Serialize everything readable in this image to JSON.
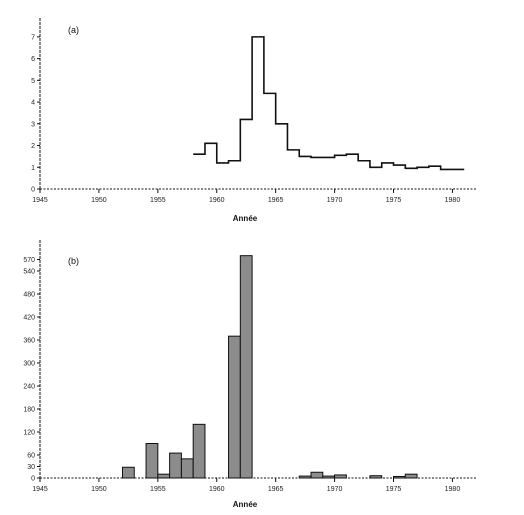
{
  "chart_data": [
    {
      "panel_label": "(a)",
      "type": "line",
      "step": true,
      "xlabel": "Année",
      "ylabel": "",
      "xlim": [
        1945,
        1982
      ],
      "ylim": [
        0,
        7.5
      ],
      "xticks": [
        1945,
        1950,
        1955,
        1960,
        1965,
        1970,
        1975,
        1980
      ],
      "yticks": [
        0,
        1,
        2,
        3,
        4,
        5,
        6,
        7
      ],
      "grid": false,
      "legend": "none",
      "x": [
        1958,
        1959,
        1960,
        1961,
        1962,
        1963,
        1964,
        1965,
        1966,
        1967,
        1968,
        1969,
        1970,
        1971,
        1972,
        1973,
        1974,
        1975,
        1976,
        1977,
        1978,
        1979,
        1980
      ],
      "y": [
        1.6,
        2.1,
        1.2,
        1.3,
        3.2,
        7.0,
        4.4,
        3.0,
        1.8,
        1.5,
        1.45,
        1.45,
        1.55,
        1.6,
        1.3,
        1.0,
        1.2,
        1.1,
        0.95,
        1.0,
        1.05,
        0.9,
        0.9
      ]
    },
    {
      "panel_label": "(b)",
      "type": "bar",
      "xlabel": "Année",
      "ylabel": "",
      "xlim": [
        1945,
        1982
      ],
      "ylim": [
        0,
        600
      ],
      "xticks": [
        1945,
        1950,
        1955,
        1960,
        1965,
        1970,
        1975,
        1980
      ],
      "yticks": [
        0,
        30,
        60,
        120,
        180,
        240,
        300,
        360,
        420,
        480,
        540,
        570
      ],
      "ytick_labels": [
        "0",
        "30",
        "60",
        "120",
        "180",
        "240",
        "300",
        "360",
        "420",
        "480",
        "540",
        "570"
      ],
      "grid": false,
      "legend": "none",
      "bar_fill": "#8c8c8c",
      "x": [
        1952,
        1954,
        1955,
        1956,
        1957,
        1958,
        1961,
        1962,
        1967,
        1968,
        1969,
        1970,
        1973,
        1975,
        1976
      ],
      "values": [
        28,
        90,
        10,
        65,
        50,
        140,
        370,
        580,
        5,
        15,
        5,
        8,
        6,
        4,
        10
      ]
    }
  ]
}
